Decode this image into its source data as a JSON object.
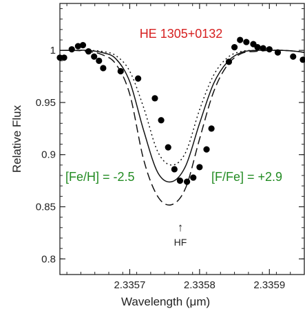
{
  "chart_data": {
    "type": "line",
    "title": "HE 1305+0132",
    "xlabel": "Wavelength (μm)",
    "ylabel": "Relative Flux",
    "xlim": [
      2.3356,
      2.33595
    ],
    "ylim": [
      0.785,
      1.045
    ],
    "grid": false,
    "xticks": [
      2.3357,
      2.3358,
      2.3359
    ],
    "xtick_labels": [
      "2.3357",
      "2.3358",
      "2.3359"
    ],
    "yticks": [
      0.8,
      0.85,
      0.9,
      0.95,
      1.0
    ],
    "ytick_labels": [
      "0.8",
      "0.85",
      "0.9",
      "0.95",
      "1"
    ],
    "series": [
      {
        "style": "markers",
        "x": [
          2.3356,
          2.335606,
          2.335617,
          2.335626,
          2.335633,
          2.335641,
          2.335649,
          2.335656,
          2.335662,
          2.335687,
          2.335712,
          2.335736,
          2.335745,
          2.335755,
          2.335764,
          2.335772,
          2.335782,
          2.335791,
          2.3358,
          2.33581,
          2.335817,
          2.335842,
          2.33585,
          2.335858,
          2.335867,
          2.335877,
          2.335883,
          2.335891,
          2.3359,
          2.335912,
          2.335934,
          2.335948
        ],
        "y": [
          0.993,
          0.993,
          1.001,
          1.004,
          1.005,
          0.999,
          0.994,
          0.99,
          0.983,
          0.98,
          0.973,
          0.954,
          0.933,
          0.907,
          0.886,
          0.875,
          0.874,
          0.878,
          0.888,
          0.905,
          0.925,
          0.989,
          1.003,
          1.01,
          1.008,
          1.006,
          1.003,
          1.002,
          1.001,
          0.998,
          0.994,
          0.991
        ]
      },
      {
        "style": "solid",
        "x": [
          2.3356,
          2.33562,
          2.33564,
          2.33566,
          2.33568,
          2.3357,
          2.33572,
          2.33574,
          2.33576,
          2.33578,
          2.3358,
          2.33582,
          2.33584,
          2.33586,
          2.33588,
          2.3359,
          2.33592,
          2.33594,
          2.33595
        ],
        "y": [
          1.0,
          1.0,
          1.0,
          0.998,
          0.992,
          0.97,
          0.923,
          0.883,
          0.874,
          0.889,
          0.93,
          0.968,
          0.989,
          0.998,
          1.0,
          1.0,
          1.0,
          0.999,
          0.998
        ]
      },
      {
        "style": "dashed",
        "x": [
          2.3356,
          2.33562,
          2.33564,
          2.33566,
          2.33568,
          2.3357,
          2.33572,
          2.33574,
          2.33576,
          2.33578,
          2.3358,
          2.33582,
          2.33584,
          2.33586,
          2.33588,
          2.3359,
          2.33592,
          2.33594,
          2.33595
        ],
        "y": [
          1.0,
          1.0,
          0.999,
          0.996,
          0.987,
          0.958,
          0.895,
          0.86,
          0.852,
          0.868,
          0.915,
          0.96,
          0.986,
          0.997,
          0.999,
          1.0,
          1.0,
          0.999,
          0.998
        ]
      },
      {
        "style": "dotted",
        "x": [
          2.3356,
          2.33562,
          2.33564,
          2.33566,
          2.33568,
          2.3357,
          2.33572,
          2.33574,
          2.33576,
          2.33578,
          2.3358,
          2.33582,
          2.33584,
          2.33586,
          2.33588,
          2.3359,
          2.33592,
          2.33594,
          2.33595
        ],
        "y": [
          1.0,
          1.0,
          1.0,
          0.999,
          0.995,
          0.98,
          0.945,
          0.903,
          0.89,
          0.902,
          0.943,
          0.976,
          0.993,
          0.999,
          1.0,
          1.0,
          1.0,
          0.999,
          0.998
        ]
      }
    ],
    "annotations": [
      {
        "text": "[Fe/H] = -2.5",
        "color": "#228B22"
      },
      {
        "text": "[F/Fe] = +2.9",
        "color": "#228B22"
      },
      {
        "text": "↑",
        "color": "#222222"
      },
      {
        "text": "HF",
        "color": "#222222"
      }
    ],
    "title_color": "#D62020"
  }
}
